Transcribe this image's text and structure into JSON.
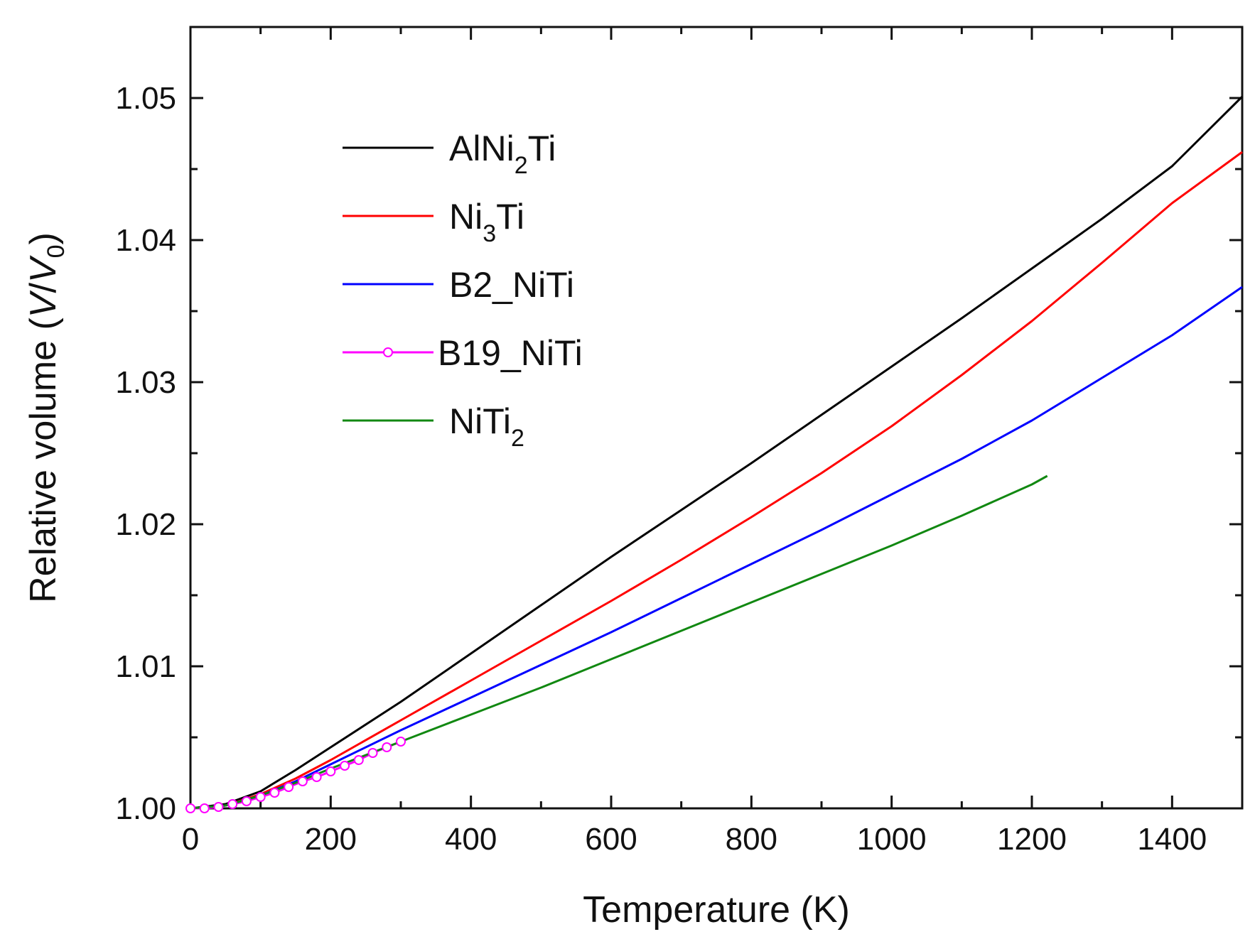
{
  "chart_data": {
    "type": "line",
    "title": "",
    "xlabel": "Temperature (K)",
    "ylabel_parts": {
      "prefix": "Relative volume (",
      "var1": "V",
      "slash": "/",
      "var2": "V",
      "sub": "0",
      "suffix": ")"
    },
    "xlim": [
      0,
      1500
    ],
    "ylim": [
      1.0,
      1.055
    ],
    "xticks": [
      0,
      200,
      400,
      600,
      800,
      1000,
      1200,
      1400
    ],
    "xtick_labels": [
      "0",
      "200",
      "400",
      "600",
      "800",
      "1000",
      "1200",
      "1400"
    ],
    "yticks": [
      1.0,
      1.01,
      1.02,
      1.03,
      1.04,
      1.05
    ],
    "ytick_labels": [
      "1.00",
      "1.01",
      "1.02",
      "1.03",
      "1.04",
      "1.05"
    ],
    "legend_position": "top-left",
    "series": [
      {
        "name": "AlNi2Ti",
        "label_parts": {
          "base": "AlNi",
          "sub": "2",
          "rest": "Ti"
        },
        "color": "#000000",
        "marker": "none",
        "x": [
          0,
          50,
          100,
          150,
          200,
          300,
          400,
          500,
          600,
          700,
          800,
          900,
          1000,
          1100,
          1200,
          1300,
          1400,
          1500
        ],
        "y": [
          1.0,
          1.0003,
          1.0012,
          1.0027,
          1.0043,
          1.0075,
          1.0109,
          1.0143,
          1.0177,
          1.021,
          1.0243,
          1.0277,
          1.0311,
          1.0345,
          1.038,
          1.0415,
          1.0452,
          1.0501
        ]
      },
      {
        "name": "Ni3Ti",
        "label_parts": {
          "base": "Ni",
          "sub": "3",
          "rest": "Ti"
        },
        "color": "#ff0000",
        "marker": "none",
        "x": [
          0,
          50,
          100,
          150,
          200,
          300,
          400,
          500,
          600,
          700,
          800,
          900,
          1000,
          1100,
          1200,
          1300,
          1400,
          1500
        ],
        "y": [
          1.0,
          1.0002,
          1.001,
          1.0021,
          1.0034,
          1.0062,
          1.009,
          1.0118,
          1.0146,
          1.0175,
          1.0205,
          1.0236,
          1.0269,
          1.0305,
          1.0343,
          1.0384,
          1.0426,
          1.0462
        ]
      },
      {
        "name": "B2_NiTi",
        "label_parts": {
          "base": "B2_NiTi",
          "sub": "",
          "rest": ""
        },
        "color": "#0000ff",
        "marker": "none",
        "x": [
          0,
          50,
          100,
          150,
          200,
          300,
          400,
          500,
          600,
          700,
          800,
          900,
          1000,
          1100,
          1200,
          1300,
          1400,
          1500
        ],
        "y": [
          1.0,
          1.0002,
          1.0009,
          1.0019,
          1.0031,
          1.0055,
          1.0078,
          1.0101,
          1.0124,
          1.0148,
          1.0172,
          1.0196,
          1.0221,
          1.0246,
          1.0273,
          1.0303,
          1.0333,
          1.0367
        ]
      },
      {
        "name": "B19_NiTi",
        "label_parts": {
          "base": "B19_NiTi",
          "sub": "",
          "rest": ""
        },
        "color": "#ff00ff",
        "marker": "circle",
        "x": [
          0,
          20,
          40,
          60,
          80,
          100,
          120,
          140,
          160,
          180,
          200,
          220,
          240,
          260,
          280,
          300
        ],
        "y": [
          1.0,
          1.0,
          1.0001,
          1.0003,
          1.0005,
          1.0008,
          1.0011,
          1.0015,
          1.0019,
          1.0022,
          1.0026,
          1.003,
          1.0034,
          1.0039,
          1.0043,
          1.0047
        ]
      },
      {
        "name": "NiTi2",
        "label_parts": {
          "base": "NiTi",
          "sub": "2",
          "rest": ""
        },
        "color": "#118811",
        "marker": "none",
        "x": [
          0,
          50,
          100,
          150,
          200,
          300,
          400,
          500,
          600,
          700,
          800,
          900,
          1000,
          1100,
          1200,
          1222
        ],
        "y": [
          1.0,
          1.0002,
          1.0009,
          1.0018,
          1.0028,
          1.0047,
          1.0066,
          1.0085,
          1.0105,
          1.0125,
          1.0145,
          1.0165,
          1.0185,
          1.0206,
          1.0228,
          1.0234
        ]
      }
    ]
  }
}
